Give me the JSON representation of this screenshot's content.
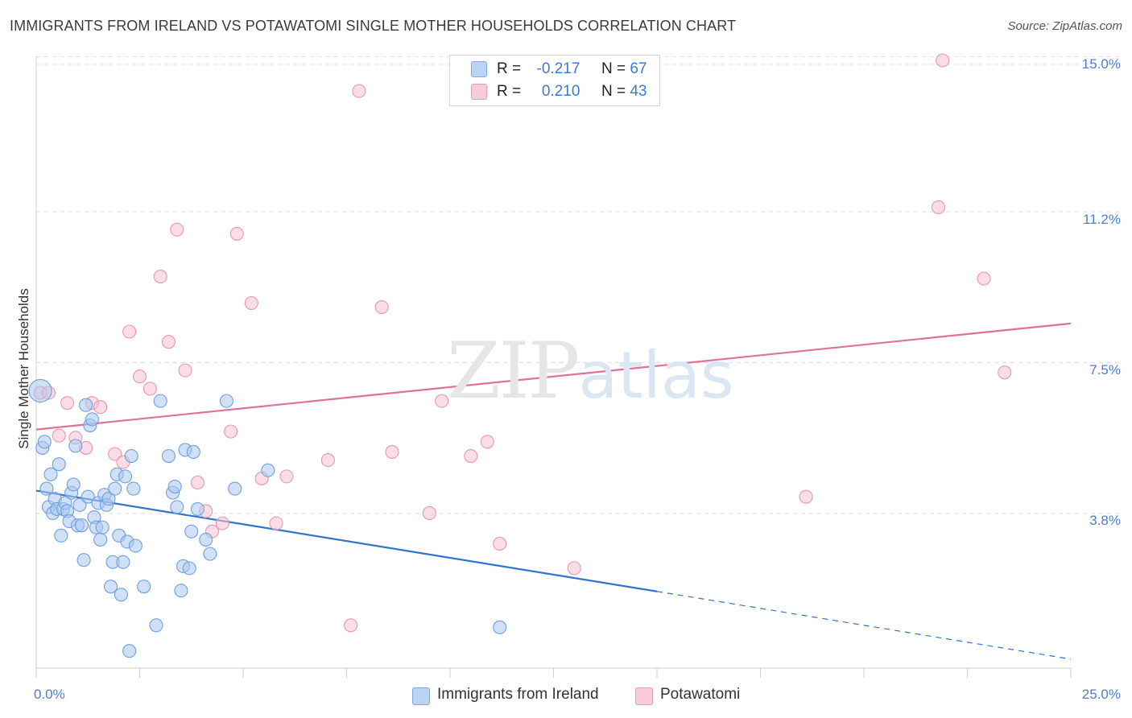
{
  "header": {
    "title": "IMMIGRANTS FROM IRELAND VS POTAWATOMI SINGLE MOTHER HOUSEHOLDS CORRELATION CHART",
    "source": "Source: ZipAtlas.com"
  },
  "watermark": {
    "zip": "ZIP",
    "atlas": "atlas"
  },
  "legend_top": {
    "rows": [
      {
        "r_label": "R =",
        "r_value": "-0.217",
        "n_label": "N =",
        "n_value": "67"
      },
      {
        "r_label": "R =",
        "r_value": "0.210",
        "n_label": "N =",
        "n_value": "43"
      }
    ]
  },
  "legend_bottom": {
    "items": [
      "Immigrants from Ireland",
      "Potawatomi"
    ]
  },
  "colors": {
    "blue_fill": "#a9c8f0",
    "blue_stroke": "#6e9fe0",
    "blue_line": "#2f74d0",
    "pink_fill": "#f7c1d2",
    "pink_stroke": "#e896b2",
    "pink_line": "#e0719a",
    "tick_text": "#4a7fd0",
    "grid": "#dedede"
  },
  "chart_data": {
    "type": "scatter",
    "title": "IMMIGRANTS FROM IRELAND VS POTAWATOMI SINGLE MOTHER HOUSEHOLDS CORRELATION CHART",
    "xlabel": "",
    "ylabel": "Single Mother Households",
    "xlim": [
      0,
      25
    ],
    "ylim": [
      0,
      15
    ],
    "x_tick_labels": [
      "0.0%",
      "25.0%"
    ],
    "y_ticks": [
      3.8,
      7.5,
      11.2,
      15.0
    ],
    "y_tick_labels": [
      "3.8%",
      "7.5%",
      "11.2%",
      "15.0%"
    ],
    "grid": true,
    "legend_position": "bottom",
    "series": [
      {
        "name": "Immigrants from Ireland",
        "r": -0.217,
        "n": 67,
        "trend": {
          "x0": 0,
          "y0": 4.35,
          "x1": 15.0,
          "y1": 1.88,
          "dashed_to_x": 25,
          "dashed_to_y": 0.22
        },
        "points": [
          [
            0.1,
            6.8
          ],
          [
            0.15,
            5.4
          ],
          [
            0.2,
            5.55
          ],
          [
            0.25,
            4.4
          ],
          [
            0.3,
            3.95
          ],
          [
            0.35,
            4.75
          ],
          [
            0.4,
            3.8
          ],
          [
            0.45,
            4.15
          ],
          [
            0.5,
            3.9
          ],
          [
            0.55,
            5.0
          ],
          [
            0.6,
            3.25
          ],
          [
            0.65,
            3.9
          ],
          [
            0.7,
            4.05
          ],
          [
            0.75,
            3.85
          ],
          [
            0.8,
            3.6
          ],
          [
            0.85,
            4.3
          ],
          [
            0.9,
            4.5
          ],
          [
            0.95,
            5.45
          ],
          [
            1.0,
            3.5
          ],
          [
            1.05,
            4.0
          ],
          [
            1.1,
            3.5
          ],
          [
            1.15,
            2.65
          ],
          [
            1.2,
            6.45
          ],
          [
            1.25,
            4.2
          ],
          [
            1.3,
            5.95
          ],
          [
            1.35,
            6.1
          ],
          [
            1.4,
            3.7
          ],
          [
            1.45,
            3.45
          ],
          [
            1.5,
            4.05
          ],
          [
            1.55,
            3.15
          ],
          [
            1.6,
            3.45
          ],
          [
            1.65,
            4.25
          ],
          [
            1.7,
            4.0
          ],
          [
            1.75,
            4.15
          ],
          [
            1.8,
            2.0
          ],
          [
            1.85,
            2.6
          ],
          [
            1.9,
            4.4
          ],
          [
            1.95,
            4.75
          ],
          [
            2.0,
            3.25
          ],
          [
            2.05,
            1.8
          ],
          [
            2.1,
            2.6
          ],
          [
            2.15,
            4.7
          ],
          [
            2.2,
            3.1
          ],
          [
            2.25,
            0.42
          ],
          [
            2.3,
            5.2
          ],
          [
            2.35,
            4.4
          ],
          [
            2.4,
            3.0
          ],
          [
            2.6,
            2.0
          ],
          [
            2.9,
            1.05
          ],
          [
            3.0,
            6.55
          ],
          [
            3.2,
            5.2
          ],
          [
            3.3,
            4.3
          ],
          [
            3.35,
            4.45
          ],
          [
            3.4,
            3.95
          ],
          [
            3.5,
            1.9
          ],
          [
            3.55,
            2.5
          ],
          [
            3.6,
            5.35
          ],
          [
            3.7,
            2.45
          ],
          [
            3.75,
            3.35
          ],
          [
            3.8,
            5.3
          ],
          [
            3.9,
            3.9
          ],
          [
            4.1,
            3.15
          ],
          [
            4.2,
            2.8
          ],
          [
            4.6,
            6.55
          ],
          [
            4.8,
            4.4
          ],
          [
            5.6,
            4.85
          ],
          [
            11.2,
            1.0
          ]
        ]
      },
      {
        "name": "Potawatomi",
        "r": 0.21,
        "n": 43,
        "trend": {
          "x0": 0,
          "y0": 5.85,
          "x1": 25,
          "y1": 8.45
        },
        "points": [
          [
            0.1,
            6.75
          ],
          [
            0.3,
            6.75
          ],
          [
            0.55,
            5.7
          ],
          [
            0.75,
            6.5
          ],
          [
            0.95,
            5.65
          ],
          [
            1.2,
            5.4
          ],
          [
            1.35,
            6.5
          ],
          [
            1.55,
            6.4
          ],
          [
            1.9,
            5.25
          ],
          [
            2.1,
            5.05
          ],
          [
            2.25,
            8.25
          ],
          [
            2.5,
            7.15
          ],
          [
            2.75,
            6.85
          ],
          [
            3.0,
            9.6
          ],
          [
            3.2,
            8.0
          ],
          [
            3.4,
            10.75
          ],
          [
            3.6,
            7.3
          ],
          [
            3.9,
            4.55
          ],
          [
            4.1,
            3.85
          ],
          [
            4.25,
            3.35
          ],
          [
            4.5,
            3.55
          ],
          [
            4.7,
            5.8
          ],
          [
            4.85,
            10.65
          ],
          [
            5.2,
            8.95
          ],
          [
            5.45,
            4.65
          ],
          [
            5.8,
            3.55
          ],
          [
            6.05,
            4.7
          ],
          [
            7.05,
            5.1
          ],
          [
            7.6,
            1.05
          ],
          [
            7.8,
            14.15
          ],
          [
            8.35,
            8.85
          ],
          [
            8.6,
            5.3
          ],
          [
            9.5,
            3.8
          ],
          [
            9.8,
            6.55
          ],
          [
            10.5,
            5.2
          ],
          [
            10.9,
            5.55
          ],
          [
            11.2,
            3.05
          ],
          [
            13.0,
            2.45
          ],
          [
            18.6,
            4.2
          ],
          [
            21.8,
            11.3
          ],
          [
            21.9,
            14.9
          ],
          [
            22.9,
            9.55
          ],
          [
            23.4,
            7.25
          ]
        ]
      }
    ]
  }
}
